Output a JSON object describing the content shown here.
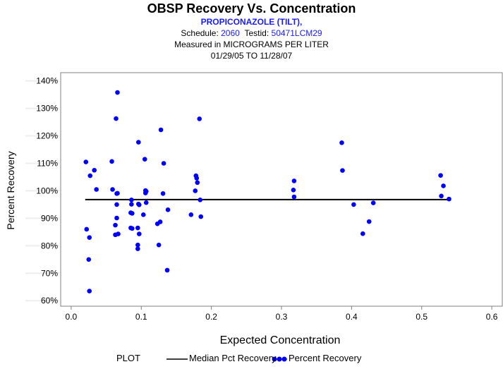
{
  "header": {
    "title": "OBSP Recovery Vs. Concentration",
    "compound": "PROPICONAZOLE (TILT),",
    "schedule_label": "Schedule:",
    "schedule_value": "2060",
    "testid_label": "Testid:",
    "testid_value": "50471LCM29",
    "units_line": "Measured in  MICROGRAMS PER LITER",
    "date_range": "01/29/05 TO 11/28/07"
  },
  "legend": {
    "title": "PLOT",
    "median_label": "Median Pct Recovery",
    "points_label": "Percent Recovery"
  },
  "colors": {
    "points": "#0000ff",
    "median_line": "#000000",
    "accent_text": "#1a1aff"
  },
  "chart_data": {
    "type": "scatter",
    "title": "OBSP Recovery Vs. Concentration",
    "xlabel": "Expected Concentration",
    "ylabel": "Percent Recovery",
    "xlim": [
      -0.015,
      0.615
    ],
    "ylim": [
      58,
      143
    ],
    "x_ticks": [
      0.0,
      0.1,
      0.2,
      0.3,
      0.4,
      0.5,
      0.6
    ],
    "x_tick_labels": [
      "0.0",
      "0.1",
      "0.2",
      "0.3",
      "0.4",
      "0.5",
      "0.6"
    ],
    "y_ticks": [
      60,
      70,
      80,
      90,
      100,
      110,
      120,
      130,
      140
    ],
    "y_tick_labels": [
      "60%",
      "70%",
      "80%",
      "90%",
      "100%",
      "110%",
      "120%",
      "130%",
      "140%"
    ],
    "series": [
      {
        "name": "Median Pct Recovery",
        "kind": "line",
        "x": [
          0.02,
          0.54
        ],
        "y": [
          96.8,
          96.8
        ]
      },
      {
        "name": "Percent Recovery",
        "kind": "points",
        "x": [
          0.021,
          0.022,
          0.025,
          0.026,
          0.026,
          0.027,
          0.033,
          0.036,
          0.058,
          0.059,
          0.063,
          0.063,
          0.064,
          0.065,
          0.065,
          0.065,
          0.066,
          0.066,
          0.067,
          0.085,
          0.085,
          0.086,
          0.086,
          0.087,
          0.087,
          0.095,
          0.095,
          0.095,
          0.096,
          0.096,
          0.097,
          0.097,
          0.103,
          0.105,
          0.106,
          0.106,
          0.107,
          0.107,
          0.123,
          0.125,
          0.127,
          0.128,
          0.131,
          0.132,
          0.137,
          0.138,
          0.171,
          0.177,
          0.178,
          0.179,
          0.18,
          0.183,
          0.184,
          0.185,
          0.317,
          0.318,
          0.318,
          0.386,
          0.387,
          0.403,
          0.416,
          0.425,
          0.431,
          0.527,
          0.528,
          0.531,
          0.539
        ],
        "y": [
          110.5,
          86,
          75,
          63.5,
          83,
          105.5,
          107.5,
          100.5,
          110.7,
          100.5,
          84,
          87.5,
          126.3,
          99,
          95,
          90.1,
          135.8,
          99.1,
          84.3,
          86.5,
          92,
          96.7,
          95.1,
          91.8,
          86.3,
          80.3,
          78.9,
          86.5,
          95.2,
          117.7,
          84.3,
          94.9,
          91.3,
          111.5,
          99.2,
          100.1,
          95.7,
          99.8,
          88,
          80.3,
          88.7,
          122.2,
          99,
          110,
          71.1,
          93.1,
          91.3,
          100,
          105.5,
          104.6,
          103,
          126.2,
          96.7,
          90.6,
          100.3,
          97.8,
          103.6,
          117.5,
          107.4,
          95,
          84.4,
          88.8,
          95.6,
          105.6,
          98.1,
          101.8,
          97
        ]
      }
    ]
  }
}
